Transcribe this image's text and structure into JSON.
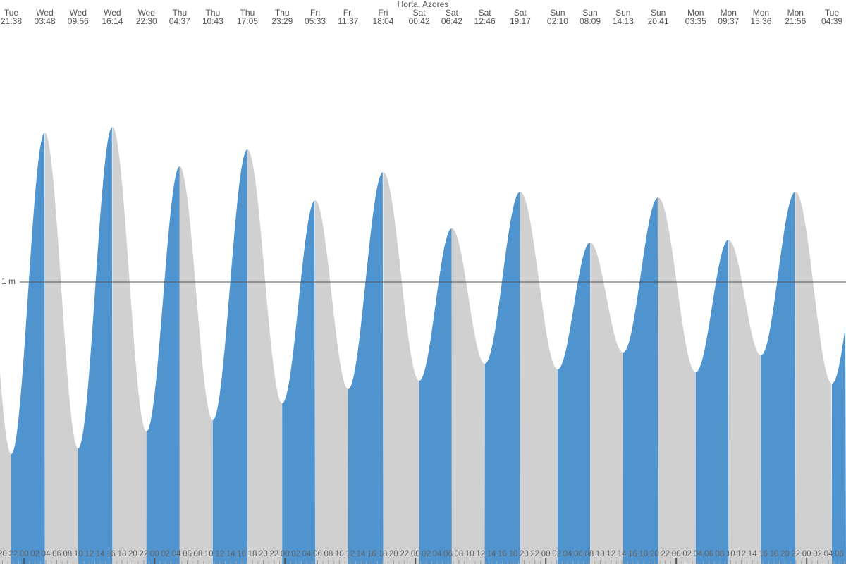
{
  "chart_data": {
    "type": "tide",
    "title": "Horta, Azores",
    "days": [
      "Tue",
      "Wed",
      "Wed",
      "Wed",
      "Wed",
      "Thu",
      "Thu",
      "Thu",
      "Thu",
      "Fri",
      "Fri",
      "Fri",
      "Sat",
      "Sat",
      "Sat",
      "Sat",
      "Sun",
      "Sun",
      "Sun",
      "Sun",
      "Mon",
      "Mon",
      "Mon",
      "Mon",
      "Tue"
    ],
    "times": [
      "21:38",
      "03:48",
      "09:56",
      "16:14",
      "22:30",
      "04:37",
      "10:43",
      "17:05",
      "23:29",
      "05:33",
      "11:37",
      "18:04",
      "00:42",
      "06:42",
      "12:46",
      "19:17",
      "02:10",
      "08:09",
      "14:13",
      "20:41",
      "03:35",
      "09:37",
      "15:36",
      "21:56",
      "04:39"
    ],
    "values": [
      0.39,
      1.53,
      0.41,
      1.55,
      0.47,
      1.41,
      0.51,
      1.47,
      0.57,
      1.29,
      0.62,
      1.39,
      0.65,
      1.19,
      0.71,
      1.32,
      0.69,
      1.14,
      0.75,
      1.3,
      0.68,
      1.15,
      0.74,
      1.32,
      0.64
    ],
    "rising_color": "#4f93cf",
    "falling_color": "#d0d0d0",
    "ylim": [
      0,
      2
    ],
    "yticks": [
      {
        "value": 1,
        "label": "1 m"
      }
    ],
    "xticks": [
      "20",
      "22",
      "00",
      "02",
      "04",
      "06",
      "08",
      "10",
      "12",
      "14",
      "16",
      "18",
      "20",
      "22",
      "00",
      "02",
      "04",
      "06",
      "08",
      "10",
      "12",
      "14",
      "16",
      "18",
      "20",
      "22",
      "00",
      "02",
      "04",
      "06",
      "08",
      "10",
      "12",
      "14",
      "16",
      "18",
      "20",
      "22",
      "00",
      "02",
      "04",
      "06",
      "08",
      "10",
      "12",
      "14",
      "16",
      "18",
      "20",
      "22",
      "00",
      "02",
      "04",
      "06",
      "08",
      "10",
      "12",
      "14",
      "16",
      "18",
      "20",
      "22",
      "00",
      "02",
      "04",
      "06",
      "08",
      "10",
      "12",
      "14",
      "16",
      "18",
      "20",
      "22",
      "00",
      "02",
      "04",
      "06"
    ]
  }
}
